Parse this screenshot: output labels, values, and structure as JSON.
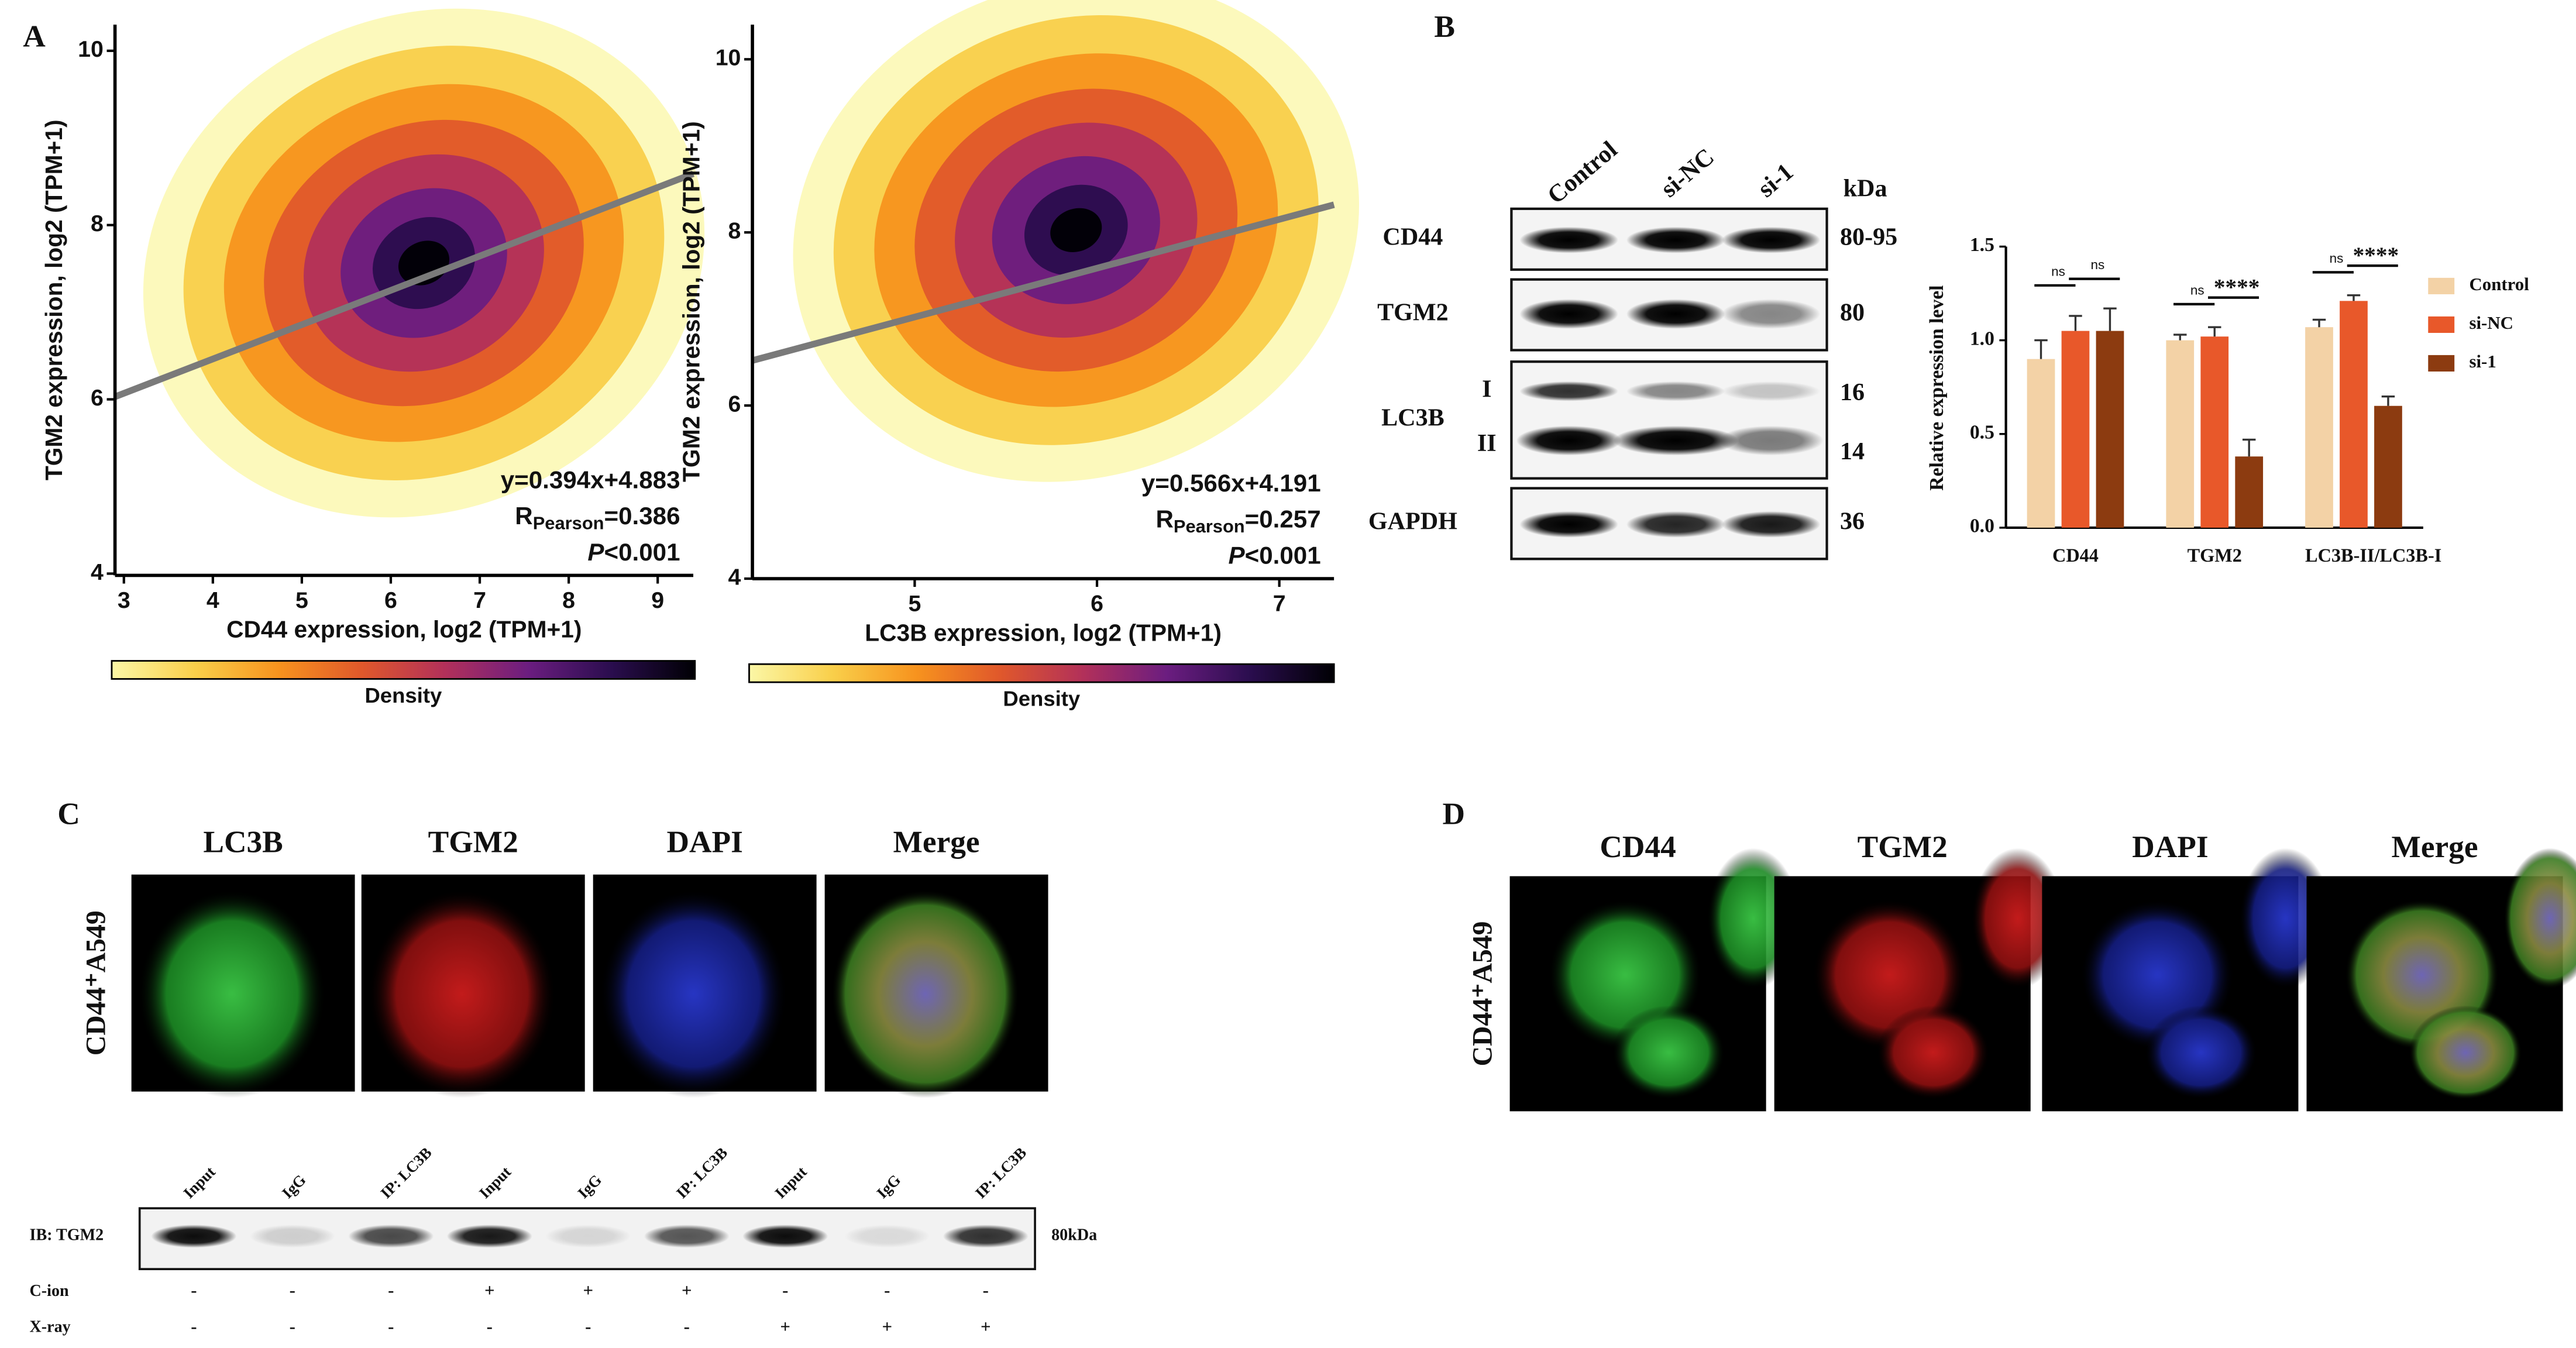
{
  "panel_labels": [
    "A",
    "B",
    "C",
    "D"
  ],
  "chart_data": [
    {
      "type": "scatter",
      "x_label": "CD44 expression, log2 (TPM+1)",
      "y_label": "TGM2 expression, log2 (TPM+1)",
      "xlim": [
        2.9,
        9.4
      ],
      "ylim": [
        3.98,
        10.3
      ],
      "xticks": [
        3,
        4,
        5,
        6,
        7,
        8,
        9
      ],
      "yticks": [
        4,
        6,
        8,
        10
      ],
      "fit_line": {
        "x": [
          2.9,
          9.4
        ],
        "y": [
          6.03,
          8.59
        ]
      },
      "equation": "y=0.394x+4.883",
      "r_symbol": "R",
      "r_subscript": "Pearson",
      "r_value": "=0.386",
      "p_symbol": "P",
      "p_value": "<0.001",
      "colorbar_label": "Density",
      "colormap": [
        "#fbf7a6",
        "#f9cf4a",
        "#f7931e",
        "#e0582b",
        "#b2305a",
        "#6b1d80",
        "#2a0d4e",
        "#000004"
      ]
    },
    {
      "type": "scatter",
      "x_label": "LC3B expression, log2 (TPM+1)",
      "y_label": "TGM2 expression, log2 (TPM+1)",
      "xlim": [
        4.11,
        7.3
      ],
      "ylim": [
        4.0,
        10.4
      ],
      "xticks": [
        5,
        6,
        7
      ],
      "yticks": [
        4,
        6,
        8,
        10
      ],
      "fit_line": {
        "x": [
          4.11,
          7.3
        ],
        "y": [
          6.52,
          8.32
        ]
      },
      "equation": "y=0.566x+4.191",
      "r_symbol": "R",
      "r_subscript": "Pearson",
      "r_value": "=0.257",
      "p_symbol": "P",
      "p_value": "<0.001",
      "colorbar_label": "Density",
      "colormap": [
        "#fbf7a6",
        "#f9cf4a",
        "#f7931e",
        "#e0582b",
        "#b2305a",
        "#6b1d80",
        "#2a0d4e",
        "#000004"
      ]
    },
    {
      "type": "bar",
      "y_label": "Relative expression level",
      "categories": [
        "CD44",
        "TGM2",
        "LC3B-II/LC3B-I"
      ],
      "series": [
        {
          "name": "Control",
          "color": "#f3d2a6",
          "values": [
            0.9,
            1.0,
            1.07
          ],
          "errors": [
            0.1,
            0.03,
            0.04
          ]
        },
        {
          "name": "si-NC",
          "color": "#e8582a",
          "values": [
            1.05,
            1.02,
            1.21
          ],
          "errors": [
            0.08,
            0.05,
            0.03
          ]
        },
        {
          "name": "si-1",
          "color": "#8c3b10",
          "values": [
            1.05,
            0.38,
            0.65
          ],
          "errors": [
            0.12,
            0.09,
            0.05
          ]
        }
      ],
      "ylim": [
        0,
        1.5
      ],
      "yticks": [
        {
          "value": 0,
          "label": "0.0"
        },
        {
          "value": 0.5,
          "label": "0.5"
        },
        {
          "value": 1,
          "label": "1.0"
        },
        {
          "value": 1.5,
          "label": "1.5"
        }
      ],
      "annotations": [
        [
          "ns",
          "ns"
        ],
        [
          "ns",
          "****"
        ],
        [
          "ns",
          "****"
        ]
      ]
    }
  ],
  "western_blot": {
    "lanes": [
      "Control",
      "si-NC",
      "si-1"
    ],
    "unit": "kDa",
    "rows": [
      {
        "label": "CD44",
        "weights": [
          "80-95"
        ]
      },
      {
        "label": "TGM2",
        "weights": [
          "80"
        ]
      },
      {
        "label": "LC3B",
        "bands": [
          "I",
          "II"
        ],
        "weights": [
          "16",
          "14"
        ]
      },
      {
        "label": "GAPDH",
        "weights": [
          "36"
        ]
      }
    ]
  },
  "panel_c": {
    "channels": [
      "LC3B",
      "TGM2",
      "DAPI",
      "Merge"
    ],
    "cell_line": "CD44⁺A549",
    "coip": {
      "lanes": [
        "Input",
        "IgG",
        "IP: LC3B",
        "Input",
        "IgG",
        "IP: LC3B",
        "Input",
        "IgG",
        "IP: LC3B"
      ],
      "blot_label": "IB: TGM2",
      "weight": "80kDa",
      "conditions": [
        {
          "name": "C-ion",
          "signs": [
            "-",
            "-",
            "-",
            "+",
            "+",
            "+",
            "-",
            "-",
            "-"
          ]
        },
        {
          "name": "X-ray",
          "signs": [
            "-",
            "-",
            "-",
            "-",
            "-",
            "-",
            "+",
            "+",
            "+"
          ]
        }
      ]
    }
  },
  "panel_d": {
    "channels": [
      "CD44",
      "TGM2",
      "DAPI",
      "Merge"
    ],
    "cell_line": "CD44⁺A549"
  }
}
